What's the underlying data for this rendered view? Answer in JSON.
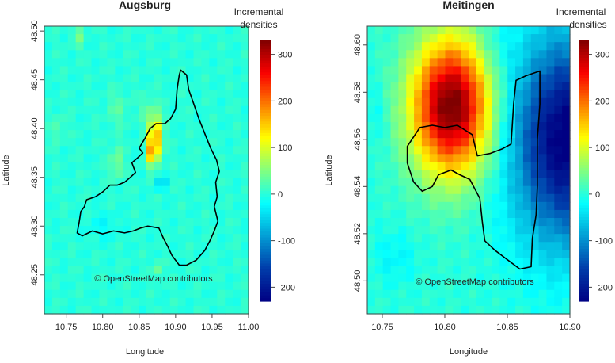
{
  "chart_data": [
    {
      "type": "heatmap",
      "title": "Augsburg",
      "xlabel": "Longitude",
      "ylabel": "Latitude",
      "xlim": [
        10.72,
        11.0
      ],
      "ylim": [
        48.21,
        48.505
      ],
      "x_ticks": [
        "10.75",
        "10.80",
        "10.85",
        "10.90",
        "10.95",
        "11.00"
      ],
      "y_ticks": [
        "48.25",
        "48.30",
        "48.35",
        "48.40",
        "48.45",
        "48.50"
      ],
      "colorbar": {
        "title_line1": "Incremental",
        "title_line2": "densities",
        "min": -230,
        "max": 330,
        "ticks": [
          "-200",
          "-100",
          "0",
          "100",
          "200",
          "300"
        ]
      },
      "credit": "© OpenStreetMap contributors",
      "hotspots": [
        {
          "x": 10.872,
          "y": 48.39,
          "sx": 0.006,
          "sy": 0.016,
          "v": 200
        },
        {
          "x": 10.867,
          "y": 48.375,
          "sx": 0.004,
          "sy": 0.008,
          "v": 100
        },
        {
          "x": 10.818,
          "y": 48.365,
          "sx": 0.005,
          "sy": 0.012,
          "v": 60
        },
        {
          "x": 10.765,
          "y": 48.495,
          "sx": 0.004,
          "sy": 0.008,
          "v": 55
        },
        {
          "x": 10.86,
          "y": 48.42,
          "sx": 0.004,
          "sy": 0.01,
          "v": 45
        },
        {
          "x": 10.88,
          "y": 48.345,
          "sx": 0.006,
          "sy": 0.006,
          "v": -50
        },
        {
          "x": 10.82,
          "y": 48.42,
          "sx": 0.01,
          "sy": 0.012,
          "v": 25
        },
        {
          "x": 10.74,
          "y": 48.4,
          "sx": 0.005,
          "sy": 0.01,
          "v": 30
        },
        {
          "x": 10.875,
          "y": 48.255,
          "sx": 0.004,
          "sy": 0.006,
          "v": 40
        },
        {
          "x": 10.8,
          "y": 48.3,
          "sx": 0.015,
          "sy": 0.01,
          "v": -20
        }
      ],
      "boundary": [
        [
          10.907,
          48.46
        ],
        [
          10.915,
          48.455
        ],
        [
          10.918,
          48.44
        ],
        [
          10.925,
          48.425
        ],
        [
          10.932,
          48.41
        ],
        [
          10.94,
          48.395
        ],
        [
          10.948,
          48.38
        ],
        [
          10.956,
          48.368
        ],
        [
          10.96,
          48.356
        ],
        [
          10.955,
          48.345
        ],
        [
          10.957,
          48.33
        ],
        [
          10.953,
          48.32
        ],
        [
          10.958,
          48.305
        ],
        [
          10.953,
          48.295
        ],
        [
          10.947,
          48.285
        ],
        [
          10.94,
          48.275
        ],
        [
          10.928,
          48.265
        ],
        [
          10.915,
          48.26
        ],
        [
          10.905,
          48.26
        ],
        [
          10.895,
          48.27
        ],
        [
          10.89,
          48.278
        ],
        [
          10.883,
          48.288
        ],
        [
          10.877,
          48.298
        ],
        [
          10.862,
          48.3
        ],
        [
          10.852,
          48.298
        ],
        [
          10.842,
          48.295
        ],
        [
          10.83,
          48.293
        ],
        [
          10.815,
          48.295
        ],
        [
          10.8,
          48.292
        ],
        [
          10.786,
          48.295
        ],
        [
          10.772,
          48.29
        ],
        [
          10.765,
          48.293
        ],
        [
          10.768,
          48.305
        ],
        [
          10.77,
          48.315
        ],
        [
          10.775,
          48.32
        ],
        [
          10.778,
          48.327
        ],
        [
          10.79,
          48.33
        ],
        [
          10.8,
          48.335
        ],
        [
          10.81,
          48.342
        ],
        [
          10.82,
          48.342
        ],
        [
          10.83,
          48.345
        ],
        [
          10.838,
          48.35
        ],
        [
          10.845,
          48.355
        ],
        [
          10.84,
          48.365
        ],
        [
          10.848,
          48.37
        ],
        [
          10.855,
          48.375
        ],
        [
          10.85,
          48.38
        ],
        [
          10.858,
          48.39
        ],
        [
          10.865,
          48.4
        ],
        [
          10.873,
          48.405
        ],
        [
          10.885,
          48.405
        ],
        [
          10.893,
          48.41
        ],
        [
          10.9,
          48.42
        ],
        [
          10.902,
          48.44
        ],
        [
          10.905,
          48.455
        ]
      ]
    },
    {
      "type": "heatmap",
      "title": "Meitingen",
      "xlabel": "Longitude",
      "ylabel": "Latitude",
      "xlim": [
        10.738,
        10.9
      ],
      "ylim": [
        48.486,
        48.608
      ],
      "x_ticks": [
        "10.75",
        "10.80",
        "10.85",
        "10.90"
      ],
      "y_ticks": [
        "48.50",
        "48.52",
        "48.54",
        "48.56",
        "48.58",
        "48.60"
      ],
      "colorbar": {
        "title_line1": "Incremental",
        "title_line2": "densities",
        "min": -230,
        "max": 330,
        "ticks": [
          "-200",
          "-100",
          "0",
          "100",
          "200",
          "300"
        ]
      },
      "credit": "© OpenStreetMap contributors",
      "hotspots": [
        {
          "x": 10.805,
          "y": 48.574,
          "sx": 0.022,
          "sy": 0.02,
          "v": 340
        },
        {
          "x": 10.898,
          "y": 48.56,
          "sx": 0.03,
          "sy": 0.03,
          "v": -240
        },
        {
          "x": 10.84,
          "y": 48.6,
          "sx": 0.01,
          "sy": 0.01,
          "v": -20
        },
        {
          "x": 10.76,
          "y": 48.51,
          "sx": 0.012,
          "sy": 0.008,
          "v": -25
        },
        {
          "x": 10.745,
          "y": 48.57,
          "sx": 0.006,
          "sy": 0.01,
          "v": -20
        }
      ],
      "boundary": [
        [
          10.78,
          48.565
        ],
        [
          10.79,
          48.566
        ],
        [
          10.8,
          48.565
        ],
        [
          10.81,
          48.566
        ],
        [
          10.822,
          48.562
        ],
        [
          10.826,
          48.553
        ],
        [
          10.836,
          48.554
        ],
        [
          10.846,
          48.556
        ],
        [
          10.853,
          48.558
        ],
        [
          10.855,
          48.575
        ],
        [
          10.857,
          48.585
        ],
        [
          10.865,
          48.587
        ],
        [
          10.876,
          48.589
        ],
        [
          10.876,
          48.575
        ],
        [
          10.874,
          48.56
        ],
        [
          10.874,
          48.54
        ],
        [
          10.873,
          48.528
        ],
        [
          10.87,
          48.518
        ],
        [
          10.869,
          48.506
        ],
        [
          10.86,
          48.505
        ],
        [
          10.85,
          48.509
        ],
        [
          10.84,
          48.513
        ],
        [
          10.832,
          48.517
        ],
        [
          10.83,
          48.525
        ],
        [
          10.828,
          48.535
        ],
        [
          10.82,
          48.543
        ],
        [
          10.812,
          48.545
        ],
        [
          10.805,
          48.547
        ],
        [
          10.795,
          48.545
        ],
        [
          10.79,
          48.54
        ],
        [
          10.782,
          48.538
        ],
        [
          10.775,
          48.542
        ],
        [
          10.77,
          48.55
        ],
        [
          10.77,
          48.557
        ]
      ]
    }
  ]
}
